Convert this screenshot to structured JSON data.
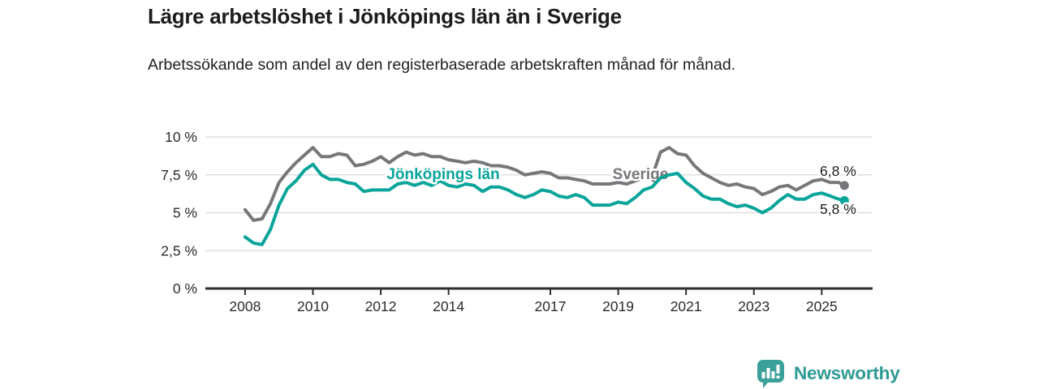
{
  "header": {
    "title": "Lägre arbetslöshet i Jönköpings län än i Sverige",
    "subtitle": "Arbetssökande som andel av den registerbaserade arbetskraften månad för månad."
  },
  "colors": {
    "sverige_line": "#76777b",
    "jonkoping_line": "#09a49a",
    "grid": "#d9d9d9",
    "axis": "#2e2e2e",
    "tick_text": "#2b2b2b",
    "value_text": "#1d1d1d",
    "logo_teal": "#3ba09a",
    "wordmark_teal": "#2d9a94"
  },
  "chart_data": {
    "type": "line",
    "title": "Lägre arbetslöshet i Jönköpings län än i Sverige",
    "xlabel": "",
    "ylabel": "Arbetssökande som andel av den registerbaserade arbetskraften",
    "grid": true,
    "legend_position": "inline-labels",
    "xlim": [
      2006.83,
      2026.5
    ],
    "ylim": [
      0,
      10
    ],
    "y_ticks": [
      {
        "value": 10,
        "label": "10 %"
      },
      {
        "value": 7.5,
        "label": "7,5 %"
      },
      {
        "value": 5,
        "label": "5 %"
      },
      {
        "value": 2.5,
        "label": "2,5 %"
      },
      {
        "value": 0,
        "label": "0 %"
      }
    ],
    "x_ticks": [
      {
        "value": 2008,
        "label": "2008"
      },
      {
        "value": 2010,
        "label": "2010"
      },
      {
        "value": 2012,
        "label": "2012"
      },
      {
        "value": 2014,
        "label": "2014"
      },
      {
        "value": 2017,
        "label": "2017"
      },
      {
        "value": 2019,
        "label": "2019"
      },
      {
        "value": 2021,
        "label": "2021"
      },
      {
        "value": 2023,
        "label": "2023"
      },
      {
        "value": 2025,
        "label": "2025"
      }
    ],
    "x": [
      2008.0,
      2008.25,
      2008.5,
      2008.75,
      2009.0,
      2009.25,
      2009.5,
      2009.75,
      2010.0,
      2010.25,
      2010.5,
      2010.75,
      2011.0,
      2011.25,
      2011.5,
      2011.75,
      2012.0,
      2012.25,
      2012.5,
      2012.75,
      2013.0,
      2013.25,
      2013.5,
      2013.75,
      2014.0,
      2014.25,
      2014.5,
      2014.75,
      2015.0,
      2015.25,
      2015.5,
      2015.75,
      2016.0,
      2016.25,
      2016.5,
      2016.75,
      2017.0,
      2017.25,
      2017.5,
      2017.75,
      2018.0,
      2018.25,
      2018.5,
      2018.75,
      2019.0,
      2019.25,
      2019.5,
      2019.75,
      2020.0,
      2020.25,
      2020.5,
      2020.75,
      2021.0,
      2021.25,
      2021.5,
      2021.75,
      2022.0,
      2022.25,
      2022.5,
      2022.75,
      2023.0,
      2023.25,
      2023.5,
      2023.75,
      2024.0,
      2024.25,
      2024.5,
      2024.75,
      2025.0,
      2025.25,
      2025.5,
      2025.67
    ],
    "series": [
      {
        "name": "Sverige",
        "color": "#76777b",
        "end_value": 6.8,
        "end_value_label": "6,8 %",
        "inline_label": {
          "x": 789,
          "y": 221
        },
        "end_label_pos": {
          "x": 1010,
          "y": 217
        },
        "values": [
          5.2,
          4.5,
          4.6,
          5.6,
          7.0,
          7.7,
          8.3,
          8.8,
          9.3,
          8.7,
          8.7,
          8.9,
          8.8,
          8.1,
          8.2,
          8.4,
          8.7,
          8.3,
          8.7,
          9.0,
          8.8,
          8.9,
          8.7,
          8.7,
          8.5,
          8.4,
          8.3,
          8.4,
          8.3,
          8.1,
          8.1,
          8.0,
          7.8,
          7.5,
          7.6,
          7.7,
          7.6,
          7.3,
          7.3,
          7.2,
          7.1,
          6.9,
          6.9,
          6.9,
          7.0,
          6.9,
          7.1,
          7.3,
          7.4,
          9.0,
          9.3,
          8.9,
          8.8,
          8.1,
          7.6,
          7.3,
          7.0,
          6.8,
          6.9,
          6.7,
          6.6,
          6.2,
          6.4,
          6.7,
          6.8,
          6.5,
          6.8,
          7.1,
          7.2,
          7.0,
          7.0,
          6.8
        ]
      },
      {
        "name": "Jönköpings län",
        "color": "#09a49a",
        "end_value": 5.8,
        "end_value_label": "5,8 %",
        "inline_label": {
          "x": 546,
          "y": 221
        },
        "end_label_pos": {
          "x": 1010,
          "y": 264
        },
        "values": [
          3.4,
          3.0,
          2.9,
          3.9,
          5.5,
          6.6,
          7.1,
          7.8,
          8.2,
          7.5,
          7.2,
          7.2,
          7.0,
          6.9,
          6.4,
          6.5,
          6.5,
          6.5,
          6.9,
          7.0,
          6.8,
          7.0,
          6.8,
          7.1,
          6.8,
          6.7,
          6.9,
          6.8,
          6.4,
          6.7,
          6.7,
          6.5,
          6.2,
          6.0,
          6.2,
          6.5,
          6.4,
          6.1,
          6.0,
          6.2,
          6.0,
          5.5,
          5.5,
          5.5,
          5.7,
          5.6,
          6.0,
          6.5,
          6.7,
          7.3,
          7.5,
          7.6,
          7.0,
          6.6,
          6.1,
          5.9,
          5.9,
          5.6,
          5.4,
          5.5,
          5.3,
          5.0,
          5.3,
          5.8,
          6.2,
          5.9,
          5.9,
          6.2,
          6.3,
          6.1,
          5.9,
          5.8
        ]
      }
    ]
  },
  "footer": {
    "brand": "Newsworthy",
    "logo_icon": "bar-chart-speech-bubble-icon"
  }
}
